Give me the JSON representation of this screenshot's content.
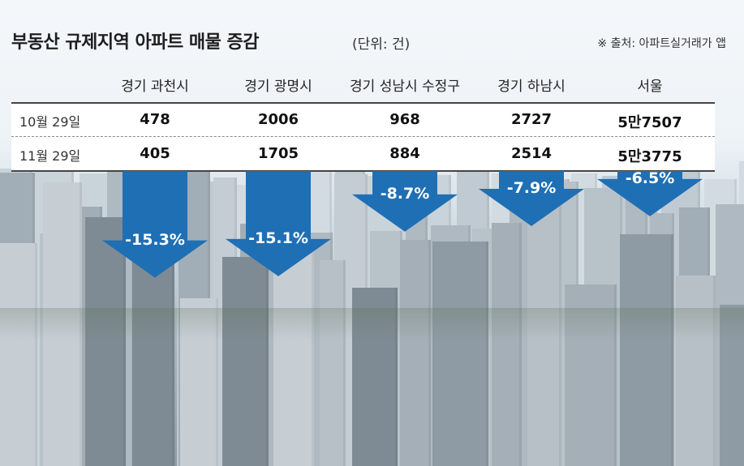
{
  "title": "부동산 규제지역 아파트 매물 증감",
  "unit": "(단위: 건)",
  "source": "※ 출처: 아파트실거래가 앱",
  "colors": {
    "arrow": "#1f6fb5",
    "table_bg": "#ffffff"
  },
  "chart_data": {
    "type": "table",
    "title": "부동산 규제지역 아파트 매물 증감",
    "unit": "(단위: 건)",
    "categories": [
      "경기 과천시",
      "경기 광명시",
      "경기 성남시 수정구",
      "경기 하남시",
      "서울"
    ],
    "rows": [
      {
        "label": "10월 29일",
        "values": [
          "478",
          "2006",
          "968",
          "2727",
          "5만7507"
        ]
      },
      {
        "label": "11월 29일",
        "values": [
          "405",
          "1705",
          "884",
          "2514",
          "5만3775"
        ]
      }
    ],
    "change_labels": [
      "-15.3%",
      "-15.1%",
      "-8.7%",
      "-7.9%",
      "-6.5%"
    ],
    "change_values": [
      -15.3,
      -15.1,
      -8.7,
      -7.9,
      -6.5
    ]
  }
}
